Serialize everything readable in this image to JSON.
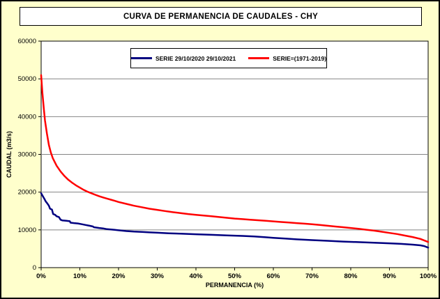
{
  "chart_data": {
    "type": "line",
    "title": "CURVA DE PERMANENCIA DE CAUDALES - CHY",
    "xlabel": "PERMANENCIA (%)",
    "ylabel": "CAUDAL (m3/s)",
    "xlim": [
      0,
      100
    ],
    "ylim": [
      0,
      60000
    ],
    "xticks": [
      0,
      10,
      20,
      30,
      40,
      50,
      60,
      70,
      80,
      90,
      100
    ],
    "xtick_labels": [
      "0%",
      "10%",
      "20%",
      "30%",
      "40%",
      "50%",
      "60%",
      "70%",
      "80%",
      "90%",
      "100%"
    ],
    "yticks": [
      0,
      10000,
      20000,
      30000,
      40000,
      50000,
      60000
    ],
    "ytick_labels": [
      "0",
      "10000",
      "20000",
      "30000",
      "40000",
      "50000",
      "60000"
    ],
    "grid": "horizontal-only",
    "legend_position": "top-center-inside",
    "colors": {
      "background": "#FFFFCC",
      "plot_background": "#FFFFFF",
      "gridline": "#848484",
      "axis": "#000000"
    },
    "series": [
      {
        "name": "SERIE 29/10/2020 29/10/2021",
        "color": "#000080",
        "points": [
          [
            0,
            19700
          ],
          [
            0.4,
            19000
          ],
          [
            0.8,
            18300
          ],
          [
            1.2,
            17500
          ],
          [
            1.6,
            17000
          ],
          [
            2,
            16400
          ],
          [
            2.3,
            15600
          ],
          [
            2.8,
            15400
          ],
          [
            3.1,
            14200
          ],
          [
            3.6,
            14000
          ],
          [
            4,
            13600
          ],
          [
            4.6,
            13400
          ],
          [
            5,
            12700
          ],
          [
            5.5,
            12500
          ],
          [
            6.5,
            12400
          ],
          [
            7.4,
            12300
          ],
          [
            7.6,
            11900
          ],
          [
            8.5,
            11800
          ],
          [
            9.5,
            11700
          ],
          [
            10.5,
            11500
          ],
          [
            11.5,
            11300
          ],
          [
            12.5,
            11100
          ],
          [
            13.4,
            10900
          ],
          [
            13.6,
            10700
          ],
          [
            15,
            10500
          ],
          [
            16,
            10400
          ],
          [
            17,
            10200
          ],
          [
            18,
            10100
          ],
          [
            19,
            10000
          ],
          [
            20,
            9900
          ],
          [
            22,
            9700
          ],
          [
            24,
            9550
          ],
          [
            26,
            9450
          ],
          [
            28,
            9350
          ],
          [
            30,
            9250
          ],
          [
            33,
            9100
          ],
          [
            36,
            9000
          ],
          [
            40,
            8850
          ],
          [
            44,
            8700
          ],
          [
            48,
            8550
          ],
          [
            52,
            8400
          ],
          [
            55,
            8250
          ],
          [
            58,
            8050
          ],
          [
            60,
            7900
          ],
          [
            63,
            7700
          ],
          [
            66,
            7500
          ],
          [
            70,
            7300
          ],
          [
            74,
            7100
          ],
          [
            78,
            6900
          ],
          [
            82,
            6750
          ],
          [
            86,
            6600
          ],
          [
            90,
            6450
          ],
          [
            93,
            6300
          ],
          [
            96,
            6100
          ],
          [
            98,
            5900
          ],
          [
            99,
            5700
          ],
          [
            100,
            5300
          ]
        ]
      },
      {
        "name": "SERIE=(1971-2019)",
        "color": "#FF0000",
        "points": [
          [
            0,
            51000
          ],
          [
            0.3,
            46500
          ],
          [
            0.7,
            42000
          ],
          [
            1,
            39000
          ],
          [
            1.5,
            35500
          ],
          [
            2,
            32500
          ],
          [
            2.5,
            30500
          ],
          [
            3,
            29000
          ],
          [
            4,
            27000
          ],
          [
            5,
            25500
          ],
          [
            6,
            24300
          ],
          [
            7,
            23300
          ],
          [
            8,
            22500
          ],
          [
            9,
            21800
          ],
          [
            10,
            21200
          ],
          [
            11,
            20600
          ],
          [
            12,
            20100
          ],
          [
            13,
            19700
          ],
          [
            14,
            19300
          ],
          [
            15,
            18900
          ],
          [
            16,
            18600
          ],
          [
            17,
            18300
          ],
          [
            18,
            18000
          ],
          [
            19,
            17700
          ],
          [
            20,
            17400
          ],
          [
            22,
            16900
          ],
          [
            24,
            16400
          ],
          [
            26,
            16000
          ],
          [
            28,
            15600
          ],
          [
            30,
            15300
          ],
          [
            32,
            15000
          ],
          [
            34,
            14700
          ],
          [
            36,
            14450
          ],
          [
            38,
            14200
          ],
          [
            40,
            14000
          ],
          [
            42,
            13800
          ],
          [
            44,
            13600
          ],
          [
            46,
            13400
          ],
          [
            48,
            13200
          ],
          [
            50,
            13000
          ],
          [
            52,
            12850
          ],
          [
            54,
            12700
          ],
          [
            56,
            12550
          ],
          [
            58,
            12400
          ],
          [
            60,
            12250
          ],
          [
            62,
            12100
          ],
          [
            64,
            11950
          ],
          [
            66,
            11800
          ],
          [
            68,
            11650
          ],
          [
            70,
            11500
          ],
          [
            72,
            11300
          ],
          [
            74,
            11100
          ],
          [
            76,
            10900
          ],
          [
            78,
            10700
          ],
          [
            80,
            10500
          ],
          [
            82,
            10300
          ],
          [
            84,
            10050
          ],
          [
            86,
            9800
          ],
          [
            88,
            9500
          ],
          [
            90,
            9200
          ],
          [
            92,
            8900
          ],
          [
            94,
            8500
          ],
          [
            96,
            8100
          ],
          [
            98,
            7600
          ],
          [
            100,
            6800
          ]
        ]
      }
    ]
  }
}
